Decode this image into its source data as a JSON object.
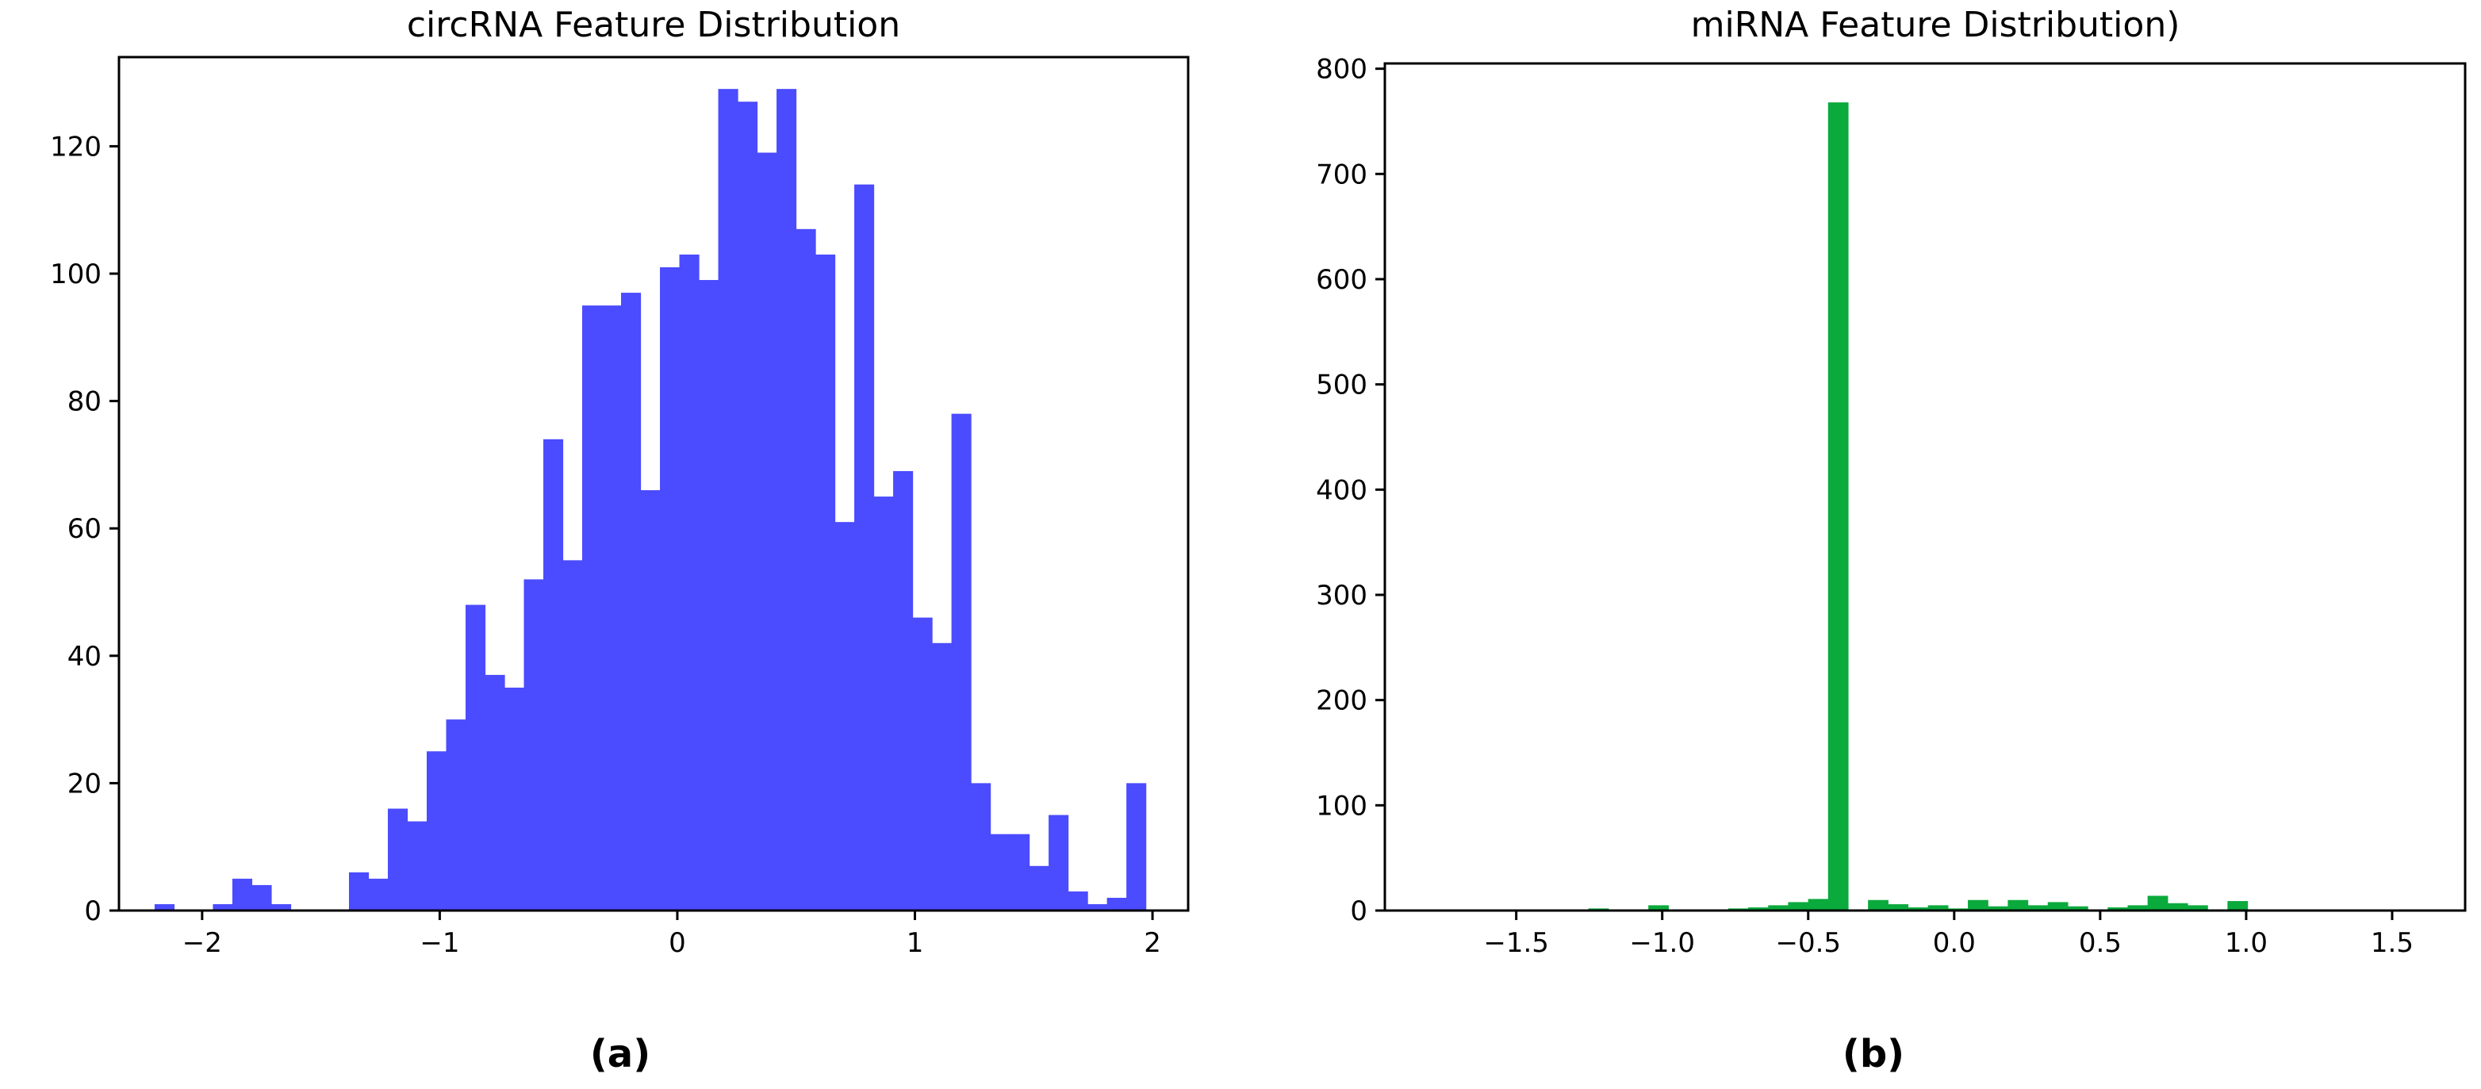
{
  "chart_data": [
    {
      "type": "bar",
      "subtype": "histogram",
      "panel_label": "(a)",
      "title": "circRNA Feature Distribution",
      "xlabel": "",
      "ylabel": "",
      "color": "#4b4bff",
      "xlim": [
        -2.35,
        2.15
      ],
      "ylim": [
        0,
        134
      ],
      "xticks": [
        -2,
        -1,
        0,
        1,
        2
      ],
      "xtick_labels": [
        "−2",
        "−1",
        "0",
        "1",
        "2"
      ],
      "yticks": [
        0,
        20,
        40,
        60,
        80,
        100,
        120
      ],
      "ytick_labels": [
        "0",
        "20",
        "40",
        "60",
        "80",
        "100",
        "120"
      ],
      "bin_start": -2.2,
      "bin_width": 0.0818,
      "counts": [
        1,
        0,
        0,
        1,
        5,
        4,
        1,
        0,
        0,
        0,
        6,
        5,
        16,
        14,
        25,
        30,
        48,
        37,
        35,
        52,
        74,
        55,
        95,
        95,
        97,
        66,
        101,
        103,
        99,
        129,
        127,
        119,
        129,
        107,
        103,
        61,
        114,
        65,
        69,
        46,
        42,
        78,
        20,
        12,
        12,
        7,
        15,
        3,
        1,
        2,
        20
      ]
    },
    {
      "type": "bar",
      "subtype": "histogram",
      "panel_label": "(b)",
      "title": "miRNA Feature Distribution)",
      "xlabel": "",
      "ylabel": "",
      "color": "#0aaa3c",
      "xlim": [
        -1.95,
        1.75
      ],
      "ylim": [
        0,
        805
      ],
      "xticks": [
        -1.5,
        -1.0,
        -0.5,
        0.0,
        0.5,
        1.0,
        1.5
      ],
      "xtick_labels": [
        "−1.5",
        "−1.0",
        "−0.5",
        "0.0",
        "0.5",
        "1.0",
        "1.5"
      ],
      "yticks": [
        0,
        100,
        200,
        300,
        400,
        500,
        600,
        700,
        800
      ],
      "ytick_labels": [
        "0",
        "100",
        "200",
        "300",
        "400",
        "500",
        "600",
        "700",
        "800"
      ],
      "bin_start": -1.8,
      "bin_width": 0.0684,
      "counts": [
        1,
        0,
        0,
        0,
        0,
        1,
        0,
        0,
        2,
        0,
        0,
        5,
        1,
        1,
        0,
        2,
        3,
        5,
        8,
        11,
        768,
        1,
        10,
        6,
        3,
        5,
        2,
        10,
        4,
        10,
        5,
        8,
        4,
        0,
        3,
        5,
        14,
        7,
        5,
        0,
        9,
        0,
        0,
        1,
        0,
        0,
        0,
        0,
        0,
        0,
        1
      ]
    }
  ]
}
